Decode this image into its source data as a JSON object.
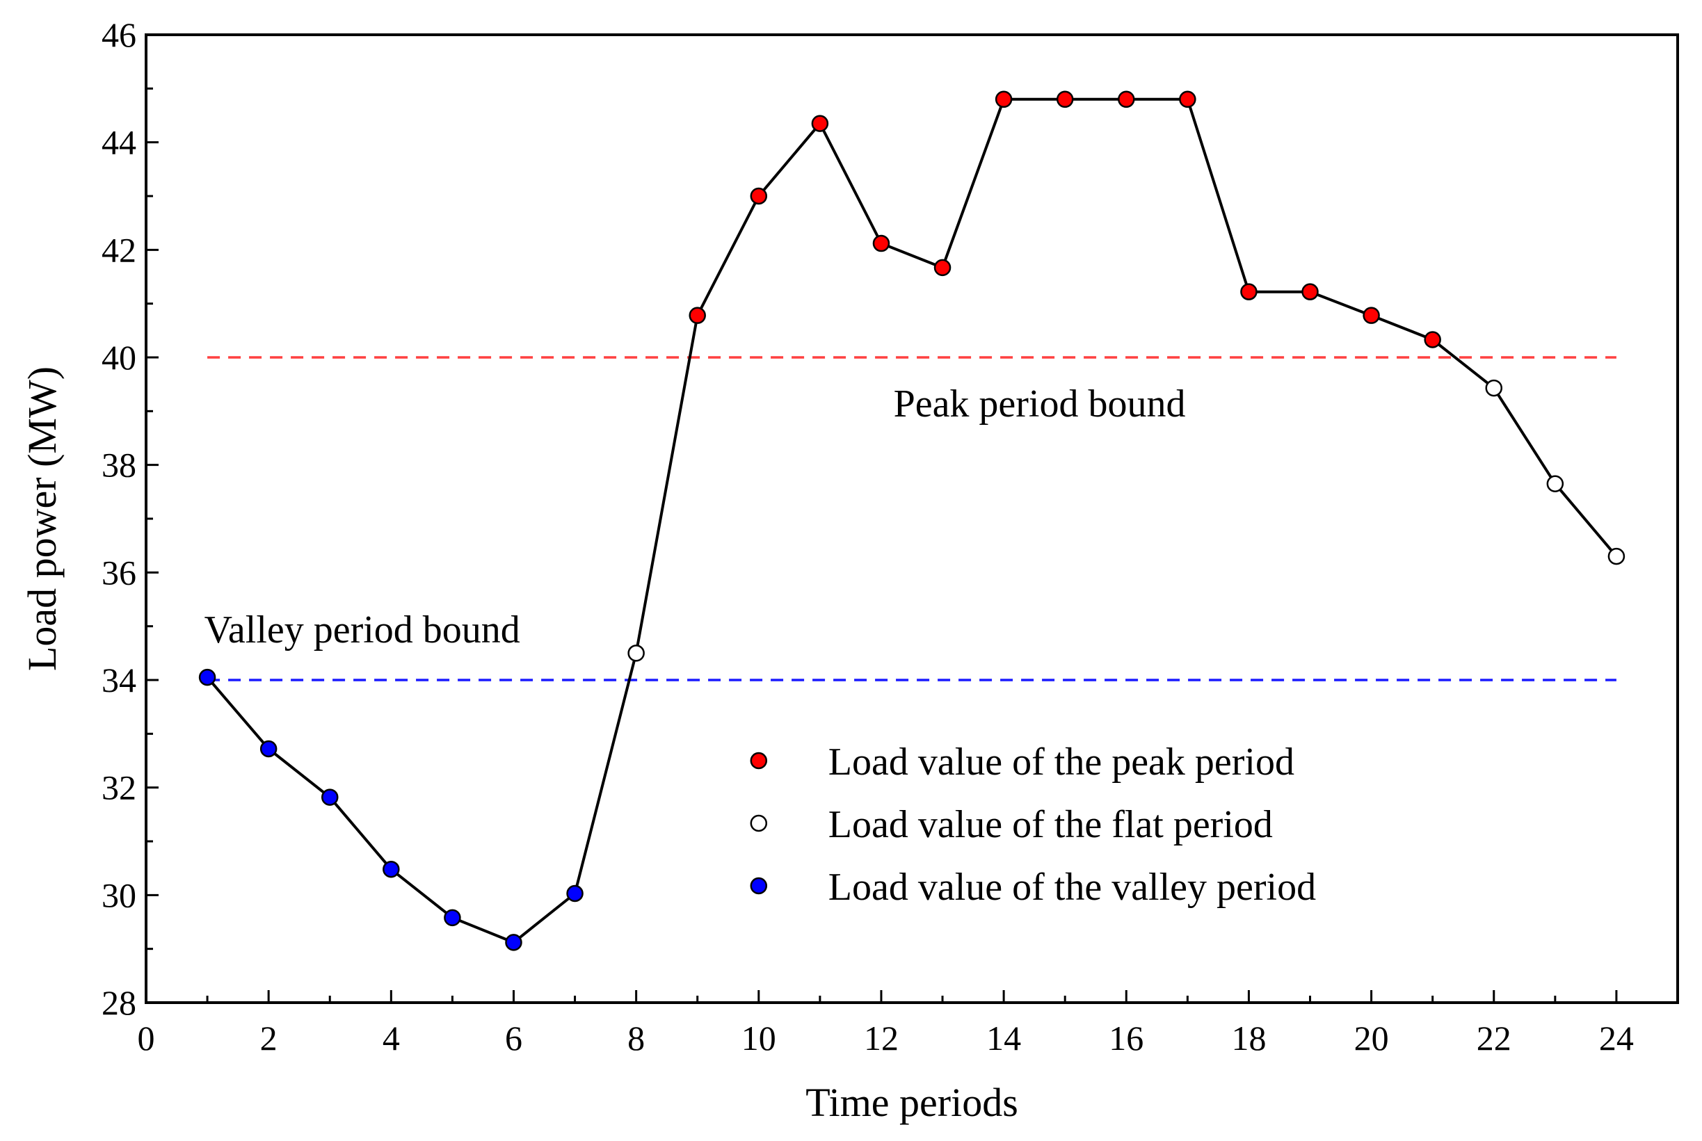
{
  "chart_data": {
    "type": "line",
    "title": "",
    "xlabel": "Time periods",
    "ylabel": "Load power (MW)",
    "xlim": [
      0,
      25
    ],
    "ylim": [
      28,
      46
    ],
    "xticks": [
      "0",
      "2",
      "4",
      "6",
      "8",
      "10",
      "12",
      "14",
      "16",
      "18",
      "20",
      "22",
      "24"
    ],
    "yticks": [
      "28",
      "30",
      "32",
      "34",
      "36",
      "38",
      "40",
      "42",
      "44",
      "46"
    ],
    "x": [
      1,
      2,
      3,
      4,
      5,
      6,
      7,
      8,
      9,
      10,
      11,
      12,
      13,
      14,
      15,
      16,
      17,
      18,
      19,
      20,
      21,
      22,
      23,
      24
    ],
    "values": [
      34.05,
      32.72,
      31.82,
      30.48,
      29.58,
      29.12,
      30.03,
      34.5,
      40.78,
      43.0,
      44.35,
      42.12,
      41.67,
      44.8,
      44.8,
      44.8,
      44.8,
      41.22,
      41.22,
      40.78,
      40.33,
      39.43,
      37.65,
      36.3
    ],
    "period": [
      "valley",
      "valley",
      "valley",
      "valley",
      "valley",
      "valley",
      "valley",
      "flat",
      "peak",
      "peak",
      "peak",
      "peak",
      "peak",
      "peak",
      "peak",
      "peak",
      "peak",
      "peak",
      "peak",
      "peak",
      "peak",
      "flat",
      "flat",
      "flat"
    ],
    "peak_bound": 40,
    "valley_bound": 34,
    "annotations": {
      "peak_bound_label": "Peak period bound",
      "valley_bound_label": "Valley period bound"
    },
    "legend": [
      {
        "key": "peak",
        "label": "Load value of the peak period"
      },
      {
        "key": "flat",
        "label": "Load value of the flat period"
      },
      {
        "key": "valley",
        "label": "Load value of the valley period"
      }
    ],
    "legend_position": "bottom-right",
    "colors": {
      "peak": "#ff0000",
      "flat": "#ffffff",
      "valley": "#0000ff",
      "line": "#000000",
      "peak_bound_line": "#ff4040",
      "valley_bound_line": "#1a1aff"
    }
  }
}
